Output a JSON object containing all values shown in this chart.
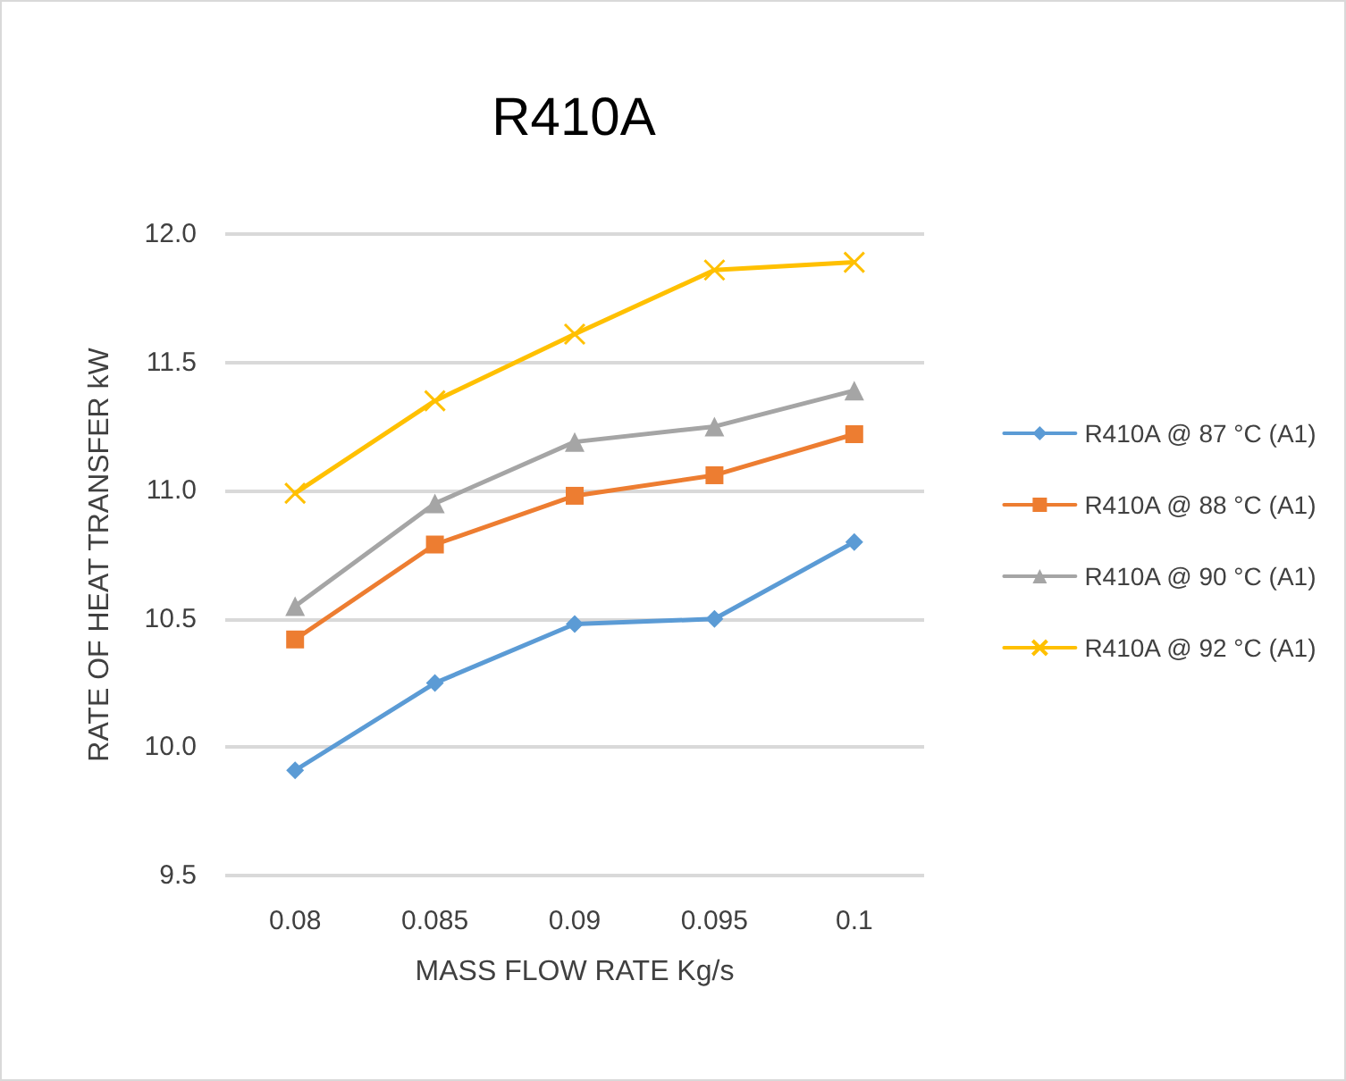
{
  "chart_data": {
    "type": "line",
    "title": "R410A",
    "xlabel": "MASS FLOW RATE Kg/s",
    "ylabel": "RATE OF HEAT TRANSFER kW",
    "categories": [
      "0.08",
      "0.085",
      "0.09",
      "0.095",
      "0.1"
    ],
    "ylim": [
      9.5,
      12.0
    ],
    "yticks": [
      9.5,
      {
        "value": 10,
        "label": "10.0"
      },
      10.5,
      {
        "value": 11,
        "label": "11.0"
      },
      11.5,
      {
        "value": 12,
        "label": "12.0"
      }
    ],
    "grid": "y",
    "legend": "right",
    "series": [
      {
        "name": "R410A @ 87 °C (A1)",
        "color": "#5b9bd5",
        "marker": "diamond",
        "values": [
          9.91,
          10.25,
          10.48,
          10.5,
          10.8
        ]
      },
      {
        "name": "R410A @ 88 °C (A1)",
        "color": "#ed7d31",
        "marker": "square",
        "values": [
          10.42,
          10.79,
          10.98,
          11.06,
          11.22
        ]
      },
      {
        "name": "R410A @ 90 °C (A1)",
        "color": "#a5a5a5",
        "marker": "triangle",
        "values": [
          10.55,
          10.95,
          11.19,
          11.25,
          11.39
        ]
      },
      {
        "name": "R410A @ 92 °C (A1)",
        "color": "#ffc000",
        "marker": "cross",
        "values": [
          10.99,
          11.35,
          11.61,
          11.86,
          11.89
        ]
      }
    ]
  }
}
